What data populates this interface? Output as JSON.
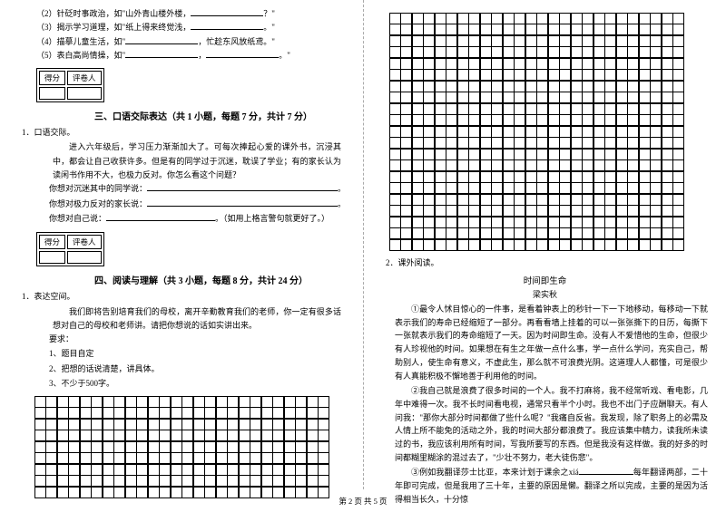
{
  "left": {
    "fill_items": [
      {
        "n": "（2）",
        "t1": "针砭时事政治，如\"山外青山楼外楼，",
        "t2": "？\""
      },
      {
        "n": "（3）",
        "t1": "揭示学习道理，如\"纸上得来终觉浅，",
        "t2": "。\""
      },
      {
        "n": "（4）",
        "t1": "描摹儿童生活，如\"",
        "mid": "，忙趁东风放纸鸢。\"",
        "t2": ""
      },
      {
        "n": "（5）",
        "t1": "表白高尚情操，如\"",
        "mid": "，",
        "t2": "。\""
      }
    ],
    "score_header": [
      "得分",
      "评卷人"
    ],
    "section3": "三、口语交际表达（共 1 小题，每题 7 分，共计 7 分）",
    "q3_label": "1．口语交际。",
    "q3_body": "进入六年级后，学习压力渐渐加大了。可每次捧起心爱的课外书，沉浸其中，都会让自己收获许多。但是有的同学过于沉迷，耽误了学业；有的家长认为读闲书作用不大，也极力反对。你怎么看这个问题？",
    "q3_l1a": "你想对沉迷其中的同学说：",
    "q3_l2a": "你想对极力反对的家长说：",
    "q3_l3a": "你想对自己说：",
    "q3_l3b": "。（如用上格言警句就更好了。）",
    "section4": "四、阅读与理解（共 3 小题，每题 8 分，共计 24 分）",
    "q4_label": "1．表达空间。",
    "q4_body": "我们即将告别培育我们的母校，离开辛勤教育我们的老师，你一定有很多话想对自己的母校和老师讲。请把你想说的话如实讲出来。",
    "req_label": "要求：",
    "reqs": [
      "1、题目自定",
      "2、把想的话说清楚，讲具体。",
      "3、不少于500字。"
    ],
    "grid": {
      "cols": 26,
      "rows": 9,
      "cell": 13
    }
  },
  "right": {
    "grid": {
      "cols": 26,
      "rows": 21,
      "cell": 13
    },
    "q2_label": "2．课外阅读。",
    "essay_title": "时间即生命",
    "essay_author": "梁实秋",
    "p1": "①最令人怵目惊心的一件事，是看着钟表上的秒针一下一下地移动，每移动一下就表示我们的寿命已经缩短了一部分。再看看墙上挂着的可以一张张撕下的日历，每撕下一张就表示我们的寿命缩短了一天。因为时间即生命。没有人不爱惜他的生命，但很少有人珍视他的时间。如果想在有生之年做一点什么事，学一点什么学问，充实自己，帮助别人，使生命有意义，不虚此生，那么就不可浪费光阴。这道理人人都懂，可是很少有人真能积极不懈地善于利用他的时间。",
    "p2": "②我自己就是浪费了很多时间的一个人。我不打麻将，我不经常听戏、看电影，几年中难得一次。我不长时间看电视，通常只看半个小时。我也不出门子应酬聊天。有人问我：\"那你大部分时间都做了些什么呢？\"我痛自反省。我发现，除了职务上的必需及人情上所不能免的活动之外，我的时间大部分都浪费了。我应该集中精力，读我所未读过的书，我应该利用所有时间，写我所要写的东西。但是我没有这样做。我的好多的时间都糊里糊涂的混过去了，\"少壮不努力，老大徒伤悲\"。",
    "p3a": "③例如我翻译莎士比亚，本来计划于课余之xiá",
    "p3b": "每年翻译两部，二十年即可完成，但是我用了三十年，主要的原因是懒。翻译之所以完成，主要的是因为活得相当长久，十分惊"
  },
  "footer": "第 2 页 共 5 页"
}
